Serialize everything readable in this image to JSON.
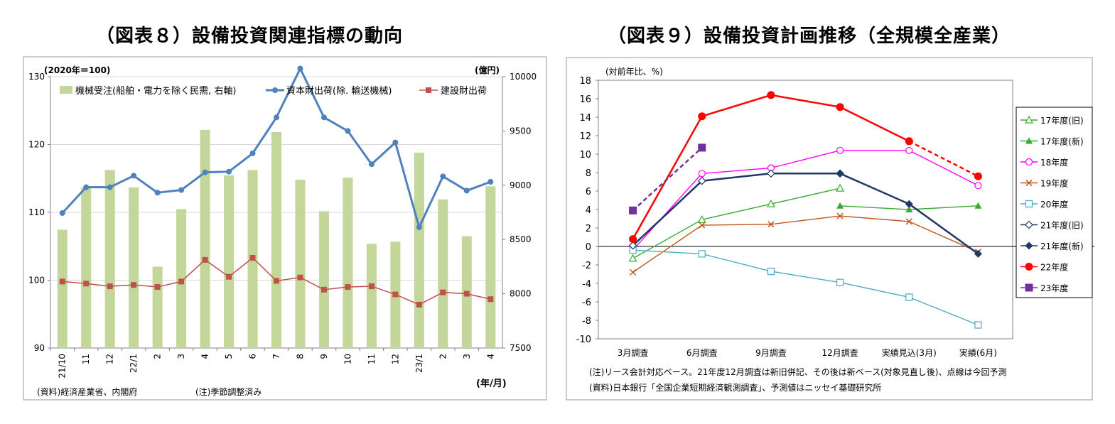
{
  "charts": [
    {
      "title": "（図表８）設備投資関連指標の動向",
      "left_axis_unit": "(2020年＝100)",
      "right_axis_unit": "(億円)",
      "x_unit": "(年/月)",
      "source_note": "(資料)経済産業省、内閣府",
      "adjust_note": "(注)季節調整済み",
      "legend_bar": "機械受注(船舶・電力を除く民需, 右軸)",
      "legend_line1": "資本財出荷(除. 輸送機械)",
      "legend_line2": "建設財出荷"
    },
    {
      "title": "（図表９）設備投資計画推移（全規模全産業）",
      "y_unit": "(対前年比、%)",
      "note1": "(注)リース会計対応ベース。21年度12月調査は新旧併記、その後は新ベース(対象見直し後)、点線は今回予測",
      "note2": "(資料)日本銀行「全国企業短期経済観測調査」、予測値はニッセイ基礎研究所"
    }
  ],
  "chart_data": [
    {
      "type": "bar",
      "categories": [
        "21/10",
        "11",
        "12",
        "22/1",
        "2",
        "3",
        "4",
        "5",
        "6",
        "7",
        "8",
        "9",
        "10",
        "11",
        "12",
        "23/1",
        "2",
        "3",
        "4"
      ],
      "ylim_left": [
        90,
        130
      ],
      "left_ticks": [
        90,
        100,
        110,
        120,
        130
      ],
      "ylim_right": [
        7500,
        10000
      ],
      "right_ticks": [
        7500,
        8000,
        8500,
        9000,
        9500,
        10000
      ],
      "grid": true,
      "series": [
        {
          "name": "機械受注(船舶・電力を除く民需, 右軸)",
          "type": "bar",
          "axis": "right",
          "color": "#c4d79b",
          "values": [
            8590,
            8980,
            9140,
            8980,
            8250,
            8780,
            9510,
            9090,
            9140,
            9490,
            9050,
            8760,
            9070,
            8460,
            8480,
            9300,
            8870,
            8530,
            8990
          ]
        },
        {
          "name": "資本財出荷(除. 輸送機械)",
          "type": "line",
          "axis": "left",
          "color": "#4f81bd",
          "marker": "circle",
          "values": [
            109.9,
            113.7,
            113.7,
            115.4,
            112.9,
            113.3,
            115.9,
            116.0,
            118.7,
            124.0,
            131.2,
            124.0,
            122.0,
            117.1,
            120.3,
            107.8,
            115.3,
            113.2,
            114.5
          ]
        },
        {
          "name": "建設財出荷",
          "type": "line",
          "axis": "left",
          "color": "#c0504d",
          "marker": "square",
          "values": [
            99.8,
            99.5,
            99.1,
            99.3,
            99.0,
            99.8,
            103.0,
            100.5,
            103.3,
            99.9,
            100.4,
            98.6,
            99.0,
            99.1,
            97.9,
            96.4,
            98.2,
            98.0,
            97.2
          ]
        }
      ]
    },
    {
      "type": "line",
      "categories": [
        "3月調査",
        "6月調査",
        "9月調査",
        "12月調査",
        "実績見込(3月)",
        "実績(6月)"
      ],
      "ylim": [
        -10,
        18
      ],
      "yticks": [
        -10,
        -8,
        -6,
        -4,
        -2,
        0,
        2,
        4,
        6,
        8,
        10,
        12,
        14,
        16,
        18
      ],
      "grid": false,
      "legend_position": "right",
      "series": [
        {
          "name": "17年度(旧)",
          "color": "#3aaa35",
          "marker": "triangle-open",
          "points": [
            [
              0,
              -1.3
            ],
            [
              1,
              2.9
            ],
            [
              2,
              4.6
            ],
            [
              3,
              6.3
            ]
          ]
        },
        {
          "name": "17年度(新)",
          "color": "#3aaa35",
          "marker": "triangle",
          "points": [
            [
              3,
              4.4
            ],
            [
              4,
              4.0
            ],
            [
              5,
              4.4
            ]
          ]
        },
        {
          "name": "18年度",
          "color": "#ff00ff",
          "marker": "circle-open",
          "points": [
            [
              0,
              -0.4
            ],
            [
              1,
              7.9
            ],
            [
              2,
              8.5
            ],
            [
              3,
              10.4
            ],
            [
              4,
              10.4
            ],
            [
              5,
              6.6
            ]
          ]
        },
        {
          "name": "19年度",
          "color": "#c0561a",
          "marker": "x",
          "points": [
            [
              0,
              -2.8
            ],
            [
              1,
              2.3
            ],
            [
              2,
              2.4
            ],
            [
              3,
              3.3
            ],
            [
              4,
              2.7
            ],
            [
              5,
              -0.6
            ]
          ]
        },
        {
          "name": "20年度",
          "color": "#4bacc6",
          "marker": "square-open",
          "points": [
            [
              0,
              -0.4
            ],
            [
              1,
              -0.8
            ],
            [
              2,
              -2.7
            ],
            [
              3,
              -3.9
            ],
            [
              4,
              -5.5
            ],
            [
              5,
              -8.5
            ]
          ]
        },
        {
          "name": "21年度(旧)",
          "color": "#1f3864",
          "marker": "diamond-open",
          "points": [
            [
              0,
              0.1
            ],
            [
              1,
              7.1
            ],
            [
              2,
              7.9
            ],
            [
              3,
              7.9
            ]
          ]
        },
        {
          "name": "21年度(新)",
          "color": "#1f3864",
          "marker": "diamond",
          "points": [
            [
              3,
              7.9
            ],
            [
              4,
              4.6
            ],
            [
              5,
              -0.8
            ]
          ]
        },
        {
          "name": "22年度",
          "color": "#ff0000",
          "marker": "circle",
          "points": [
            [
              0,
              0.8
            ],
            [
              1,
              14.1
            ],
            [
              2,
              16.4
            ],
            [
              3,
              15.1
            ],
            [
              4,
              11.4
            ],
            [
              5,
              7.6
            ]
          ],
          "dashed_from": 4
        },
        {
          "name": "23年度",
          "color": "#7030a0",
          "marker": "square",
          "points": [
            [
              0,
              3.9
            ],
            [
              1,
              10.7
            ]
          ],
          "dashed_from": 0
        }
      ]
    }
  ]
}
